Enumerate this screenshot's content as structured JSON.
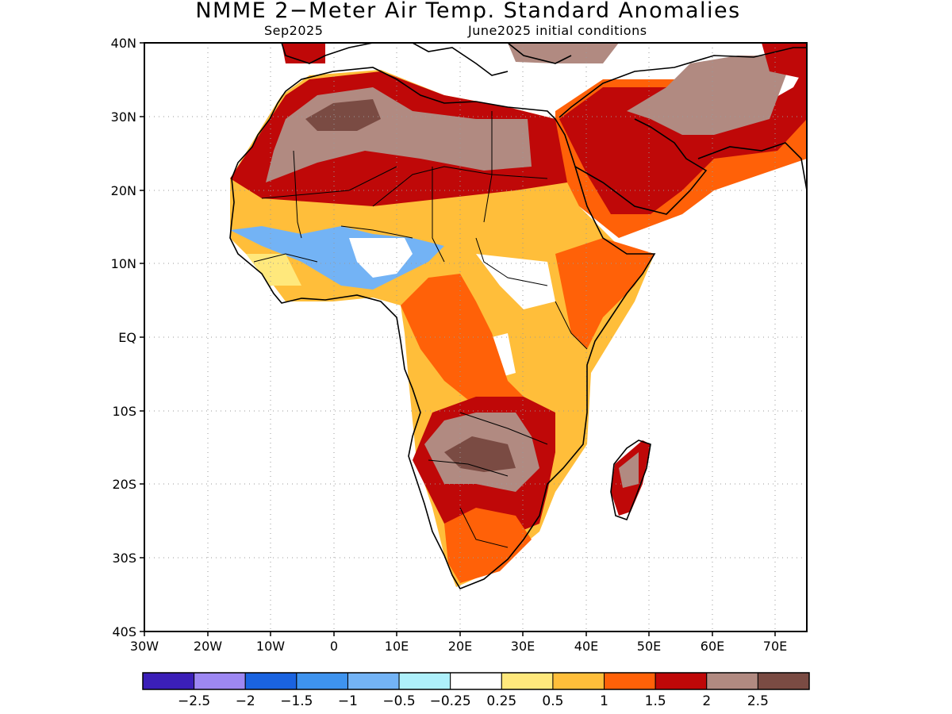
{
  "title": "NMME 2−Meter Air Temp. Standard Anomalies",
  "target_month": "Sep2025",
  "initial_conditions": "June2025 initial conditions",
  "lat_labels": [
    "40N",
    "30N",
    "20N",
    "10N",
    "EQ",
    "10S",
    "20S",
    "30S",
    "40S"
  ],
  "lon_labels": [
    "30W",
    "20W",
    "10W",
    "0",
    "10E",
    "20E",
    "30E",
    "40E",
    "50E",
    "60E",
    "70E"
  ],
  "colorbar": {
    "colors": [
      "#3b1fb8",
      "#9d87f2",
      "#1a63e0",
      "#3e93ee",
      "#73b3f5",
      "#aef0fb",
      "#ffffff",
      "#ffe87c",
      "#ffbe3a",
      "#ff6108",
      "#bf0808",
      "#b18a81",
      "#7a4b43"
    ],
    "labels": [
      "−2.5",
      "−2",
      "−1.5",
      "−1",
      "−0.5",
      "−0.25",
      "0.25",
      "0.5",
      "1",
      "1.5",
      "2",
      "2.5"
    ]
  }
}
